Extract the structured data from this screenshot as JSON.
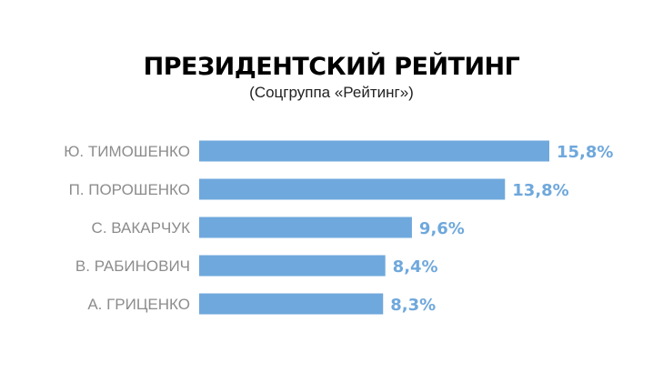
{
  "title": "ПРЕЗИДЕНТСКИЙ РЕЙТИНГ",
  "subtitle": "(Соцгруппа «Рейтинг»)",
  "colors": {
    "bar": "#6fa8dc",
    "value_label": "#6fa8dc",
    "category_label": "#8c8c8c"
  },
  "chart_data": {
    "type": "bar",
    "orientation": "horizontal",
    "title": "ПРЕЗИДЕНТСКИЙ РЕЙТИНГ",
    "subtitle": "(Соцгруппа «Рейтинг»)",
    "categories": [
      "Ю. ТИМОШЕНКО",
      "П. ПОРОШЕНКО",
      "С. ВАКАРЧУК",
      "В. РАБИНОВИЧ",
      "А. ГРИЦЕНКО"
    ],
    "values": [
      15.8,
      13.8,
      9.6,
      8.4,
      8.3
    ],
    "value_labels": [
      "15,8%",
      "13,8%",
      "9,6%",
      "8,4%",
      "8,3%"
    ],
    "unit": "%",
    "xlim": [
      0,
      15.8
    ],
    "grid": false,
    "legend": "none"
  }
}
